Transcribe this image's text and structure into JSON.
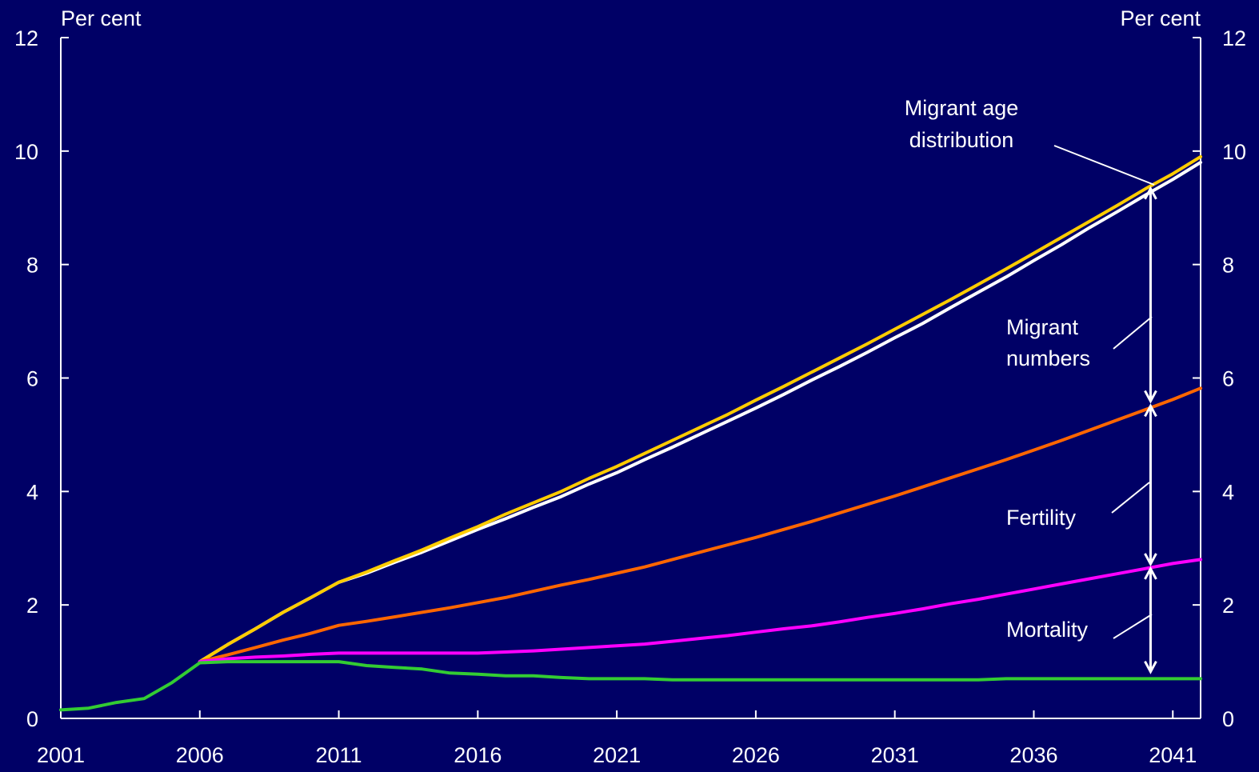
{
  "chart_data": {
    "type": "line",
    "left_unit": "Per cent",
    "right_unit": "Per cent",
    "xlim": [
      2001,
      2042
    ],
    "ylim": [
      0,
      12
    ],
    "x_ticks": [
      "2001",
      "2006",
      "2011",
      "2016",
      "2021",
      "2026",
      "2031",
      "2036",
      "2041"
    ],
    "x_tick_values": [
      2001,
      2006,
      2011,
      2016,
      2021,
      2026,
      2031,
      2036,
      2041
    ],
    "y_ticks": [
      "0",
      "2",
      "4",
      "6",
      "8",
      "10",
      "12"
    ],
    "y_tick_values": [
      0,
      2,
      4,
      6,
      8,
      10,
      12
    ],
    "grid": false,
    "series": [
      {
        "color": "#ffffff",
        "x": [
          2006,
          2007,
          2008,
          2009,
          2010,
          2011,
          2012,
          2013,
          2014,
          2015,
          2016,
          2017,
          2018,
          2019,
          2020,
          2021,
          2022,
          2023,
          2024,
          2025,
          2026,
          2027,
          2028,
          2029,
          2030,
          2031,
          2032,
          2033,
          2034,
          2035,
          2036,
          2037,
          2038,
          2039,
          2040,
          2041,
          2042
        ],
        "values": [
          1.0,
          1.3,
          1.58,
          1.87,
          2.13,
          2.4,
          2.56,
          2.75,
          2.93,
          3.13,
          3.33,
          3.52,
          3.72,
          3.91,
          4.13,
          4.33,
          4.56,
          4.78,
          5.01,
          5.24,
          5.47,
          5.71,
          5.96,
          6.2,
          6.45,
          6.71,
          6.96,
          7.24,
          7.51,
          7.78,
          8.07,
          8.35,
          8.65,
          8.93,
          9.22,
          9.5,
          9.8
        ]
      },
      {
        "color": "#ffcc00",
        "x": [
          2006,
          2007,
          2008,
          2009,
          2010,
          2011,
          2012,
          2013,
          2014,
          2015,
          2016,
          2017,
          2018,
          2019,
          2020,
          2021,
          2022,
          2023,
          2024,
          2025,
          2026,
          2027,
          2028,
          2029,
          2030,
          2031,
          2032,
          2033,
          2034,
          2035,
          2036,
          2037,
          2038,
          2039,
          2040,
          2041,
          2042
        ],
        "values": [
          1.0,
          1.3,
          1.58,
          1.87,
          2.13,
          2.4,
          2.58,
          2.78,
          2.97,
          3.18,
          3.38,
          3.6,
          3.8,
          4.0,
          4.23,
          4.44,
          4.67,
          4.9,
          5.13,
          5.36,
          5.61,
          5.85,
          6.1,
          6.35,
          6.6,
          6.86,
          7.12,
          7.38,
          7.65,
          7.92,
          8.2,
          8.48,
          8.76,
          9.04,
          9.33,
          9.6,
          9.9
        ]
      },
      {
        "color": "#ff6600",
        "x": [
          2006,
          2007,
          2008,
          2009,
          2010,
          2011,
          2012,
          2013,
          2014,
          2015,
          2016,
          2017,
          2018,
          2019,
          2020,
          2021,
          2022,
          2023,
          2024,
          2025,
          2026,
          2027,
          2028,
          2029,
          2030,
          2031,
          2032,
          2033,
          2034,
          2035,
          2036,
          2037,
          2038,
          2039,
          2040,
          2041,
          2042
        ],
        "values": [
          1.0,
          1.12,
          1.25,
          1.38,
          1.5,
          1.64,
          1.71,
          1.79,
          1.87,
          1.95,
          2.04,
          2.13,
          2.24,
          2.35,
          2.45,
          2.56,
          2.67,
          2.8,
          2.93,
          3.06,
          3.19,
          3.33,
          3.47,
          3.62,
          3.77,
          3.92,
          4.08,
          4.24,
          4.4,
          4.56,
          4.73,
          4.9,
          5.08,
          5.26,
          5.44,
          5.62,
          5.82
        ]
      },
      {
        "color": "#ff00ff",
        "x": [
          2006,
          2007,
          2008,
          2009,
          2010,
          2011,
          2012,
          2013,
          2014,
          2015,
          2016,
          2017,
          2018,
          2019,
          2020,
          2021,
          2022,
          2023,
          2024,
          2025,
          2026,
          2027,
          2028,
          2029,
          2030,
          2031,
          2032,
          2033,
          2034,
          2035,
          2036,
          2037,
          2038,
          2039,
          2040,
          2041,
          2042
        ],
        "values": [
          1.0,
          1.05,
          1.08,
          1.1,
          1.13,
          1.15,
          1.15,
          1.15,
          1.15,
          1.15,
          1.15,
          1.17,
          1.19,
          1.22,
          1.25,
          1.28,
          1.31,
          1.36,
          1.41,
          1.46,
          1.52,
          1.58,
          1.63,
          1.7,
          1.78,
          1.85,
          1.93,
          2.02,
          2.1,
          2.19,
          2.28,
          2.37,
          2.46,
          2.55,
          2.64,
          2.73,
          2.8
        ]
      },
      {
        "color": "#33cc33",
        "x": [
          2001,
          2002,
          2003,
          2004,
          2005,
          2006,
          2007,
          2008,
          2009,
          2010,
          2011,
          2012,
          2013,
          2014,
          2015,
          2016,
          2017,
          2018,
          2019,
          2020,
          2021,
          2022,
          2023,
          2024,
          2025,
          2026,
          2027,
          2028,
          2029,
          2030,
          2031,
          2032,
          2033,
          2034,
          2035,
          2036,
          2037,
          2038,
          2039,
          2040,
          2041,
          2042
        ],
        "values": [
          0.15,
          0.18,
          0.28,
          0.35,
          0.63,
          0.98,
          1.0,
          1.0,
          1.0,
          1.0,
          1.0,
          0.93,
          0.9,
          0.87,
          0.8,
          0.78,
          0.75,
          0.75,
          0.72,
          0.7,
          0.7,
          0.7,
          0.68,
          0.68,
          0.68,
          0.68,
          0.68,
          0.68,
          0.68,
          0.68,
          0.68,
          0.68,
          0.68,
          0.68,
          0.7,
          0.7,
          0.7,
          0.7,
          0.7,
          0.7,
          0.7,
          0.7
        ]
      }
    ],
    "annotations": {
      "migrant_age_line1": "Migrant age",
      "migrant_age_line2": "distribution",
      "migrant_numbers_line1": "Migrant",
      "migrant_numbers_line2": "numbers",
      "fertility": "Fertility",
      "mortality": "Mortality"
    },
    "arrow_x": 2040.2,
    "arrow_levels": [
      9.38,
      5.55,
      2.68,
      0.78
    ]
  }
}
